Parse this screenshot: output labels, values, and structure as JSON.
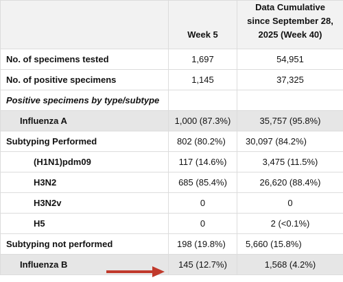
{
  "header": {
    "week": "Week 5",
    "cumulative": "Data Cumulative since September 28, 2025 (Week 40)"
  },
  "rows": [
    [
      "No. of specimens tested",
      "1,697",
      "54,951"
    ],
    [
      "No. of positive specimens",
      "1,145",
      "37,325"
    ],
    [
      "Positive specimens by type/subtype"
    ],
    [
      "Influenza A",
      "1,000 (87.3%)",
      "35,757 (95.8%)"
    ],
    [
      "Subtyping Performed",
      "802 (80.2%)",
      "30,097 (84.2%)"
    ],
    [
      "(H1N1)pdm09",
      "117 (14.6%)",
      "3,475 (11.5%)"
    ],
    [
      "H3N2",
      "685 (85.4%)",
      "26,620 (88.4%)"
    ],
    [
      "H3N2v",
      "0",
      "0"
    ],
    [
      "H5",
      "0",
      "2 (<0.1%)"
    ],
    [
      "Subtyping not performed",
      "198 (19.8%)",
      "5,660 (15.8%)"
    ],
    [
      "Influenza B",
      "145 (12.7%)",
      "1,568 (4.2%)"
    ]
  ]
}
